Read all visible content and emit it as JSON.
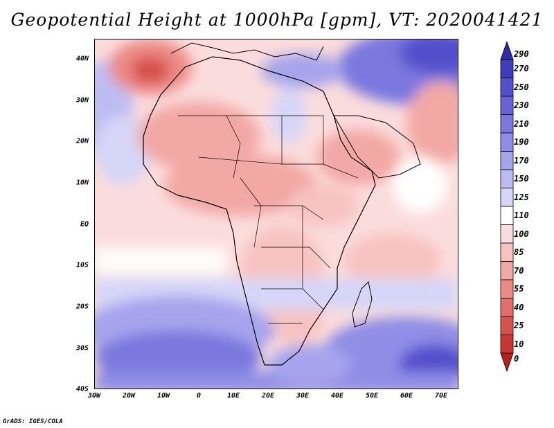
{
  "title": "Geopotential Height at 1000hPa [gpm], VT: 2020041421",
  "credit": "GrADS: IGES/COLA",
  "map": {
    "region": "Africa",
    "lat_labels": [
      "40N",
      "30N",
      "20N",
      "10N",
      "EQ",
      "10S",
      "20S",
      "30S",
      "40S"
    ],
    "lon_labels": [
      "30W",
      "20W",
      "10W",
      "0",
      "10E",
      "20E",
      "30E",
      "40E",
      "50E",
      "60E",
      "70E"
    ],
    "lat_range": [
      -40,
      45
    ],
    "lon_range": [
      -30,
      75
    ]
  },
  "colorbar": {
    "labels": [
      "290",
      "270",
      "250",
      "230",
      "210",
      "190",
      "170",
      "150",
      "125",
      "110",
      "100",
      "85",
      "70",
      "55",
      "40",
      "25",
      "10",
      "0"
    ],
    "colors": [
      "#2e2ba8",
      "#3f3dbf",
      "#5250cc",
      "#6563d6",
      "#7a78de",
      "#8f8de6",
      "#a6a4ec",
      "#bdbcf2",
      "#d6d6f8",
      "#ffffff",
      "#fbdcdc",
      "#f7c3c1",
      "#f2a8a5",
      "#ec8a86",
      "#e26d69",
      "#d7514d",
      "#c83632",
      "#b5201d"
    ]
  },
  "chart_data": {
    "type": "heatmap",
    "title": "Geopotential Height at 1000hPa [gpm], VT: 2020041421",
    "variable": "Geopotential Height at 1000hPa",
    "units": "gpm",
    "valid_time": "2020041421",
    "lon_range": [
      -30,
      75
    ],
    "lat_range": [
      -40,
      45
    ],
    "levels": [
      0,
      10,
      25,
      40,
      55,
      70,
      85,
      100,
      110,
      125,
      150,
      170,
      190,
      210,
      230,
      250,
      270,
      290
    ]
  }
}
